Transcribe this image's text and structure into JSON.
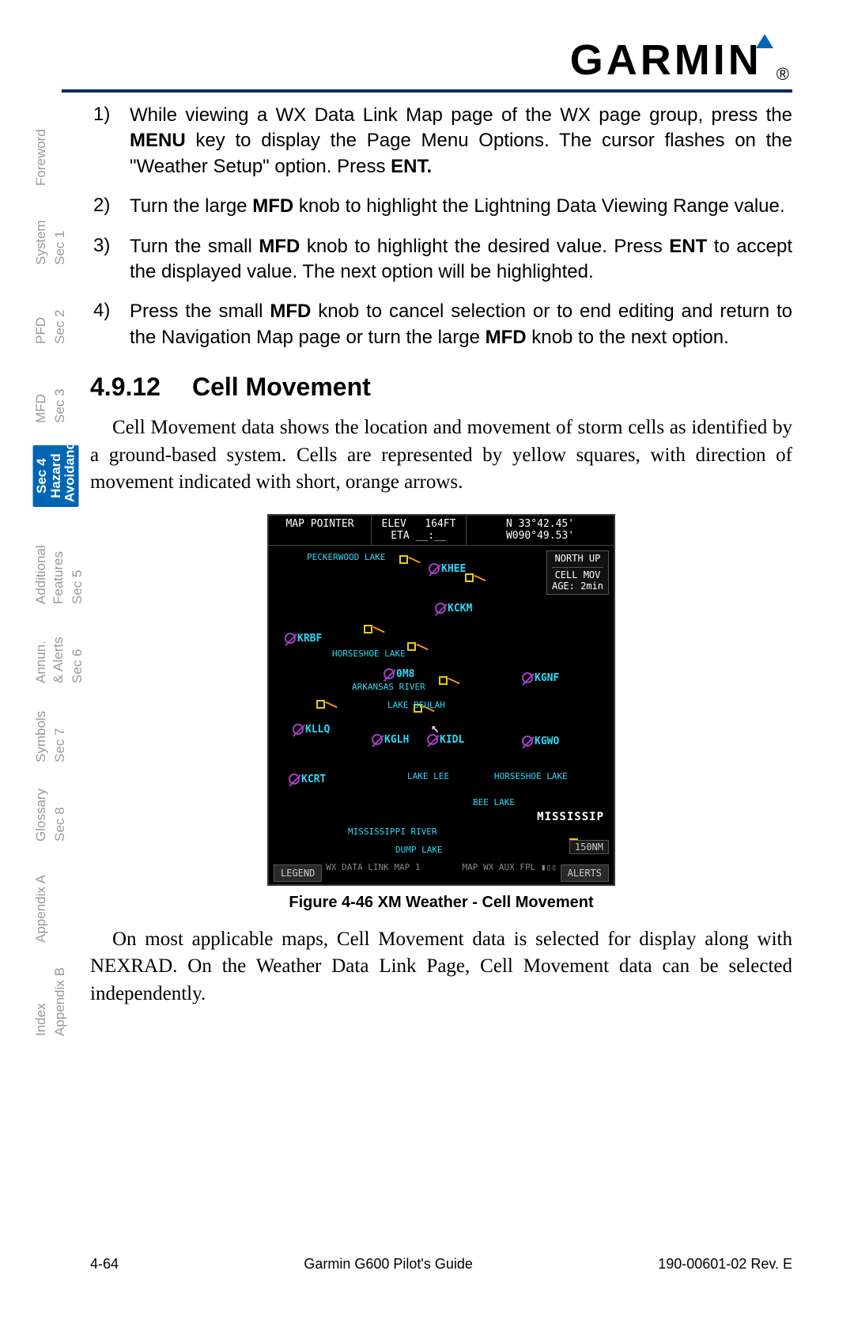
{
  "logo": {
    "text": "GARMIN"
  },
  "sideTabs": [
    {
      "main": "",
      "sub": "Foreword",
      "active": false
    },
    {
      "main": "Sec 1",
      "sub": "System",
      "active": false
    },
    {
      "main": "Sec 2",
      "sub": "PFD",
      "active": false
    },
    {
      "main": "Sec 3",
      "sub": "MFD",
      "active": false
    },
    {
      "main": "Sec 4",
      "sub": "Hazard\nAvoidance",
      "active": true
    },
    {
      "main": "Sec 5",
      "sub": "Additional\nFeatures",
      "active": false
    },
    {
      "main": "Sec 6",
      "sub": "Annun.\n& Alerts",
      "active": false
    },
    {
      "main": "Sec 7",
      "sub": "Symbols",
      "active": false
    },
    {
      "main": "Sec 8",
      "sub": "Glossary",
      "active": false
    },
    {
      "main": "",
      "sub": "Appendix A",
      "active": false
    },
    {
      "main": "Appendix B",
      "sub": "Index",
      "active": false
    }
  ],
  "steps": [
    {
      "num": "1)",
      "pre": "While viewing a WX Data Link Map page of the WX page group, press the ",
      "b1": "MENU",
      "mid1": " key to display the Page Menu Options. The cursor flashes on the \"Weather Setup\" option. Press ",
      "b2": "ENT.",
      "post": ""
    },
    {
      "num": "2)",
      "pre": "Turn the large ",
      "b1": "MFD",
      "mid1": " knob to highlight the Lightning Data Viewing Range value.",
      "b2": "",
      "post": ""
    },
    {
      "num": "3)",
      "pre": "Turn the small ",
      "b1": "MFD",
      "mid1": " knob to highlight the desired value. Press ",
      "b2": "ENT",
      "post": " to accept the displayed value. The next option will be highlighted."
    },
    {
      "num": "4)",
      "pre": "Press the small ",
      "b1": "MFD",
      "mid1": " knob to cancel selection or to end editing and return to the Navigation Map page or turn the large ",
      "b2": "MFD",
      "post": " knob to the next option."
    }
  ],
  "section": {
    "num": "4.9.12",
    "title": "Cell Movement"
  },
  "para1": "Cell Movement data shows the location and movement of storm cells as identified by a ground-based system. Cells are represented by yellow squares, with direction of movement indicated with short, orange arrows.",
  "figureCaption": "Figure 4-46  XM Weather - Cell Movement",
  "para2": "On most applicable maps, Cell Movement data is selected for display along with NEXRAD. On the Weather Data Link Page, Cell Movement data can be selected independently.",
  "footer": {
    "left": "4-64",
    "center": "Garmin G600 Pilot's Guide",
    "right": "190-00601-02  Rev. E"
  },
  "map": {
    "topBar": {
      "pointer": "MAP POINTER",
      "elevLabel": "ELEV",
      "elevVal": "164FT",
      "etaLabel": "ETA",
      "etaVal": "__:__",
      "lat": "N 33°42.45'",
      "lon": "W090°49.53'"
    },
    "infoBox": {
      "line1": "NORTH UP",
      "line2": "CELL MOV",
      "line3": "AGE: 2min"
    },
    "airports": [
      "KHEE",
      "KCKM",
      "KRBF",
      "0M8",
      "KLLQ",
      "KGLH",
      "KIDL",
      "KGNF",
      "KGWO",
      "KCRT"
    ],
    "water": [
      "PECKERWOOD LAKE",
      "HORSESHOE LAKE",
      "ARKANSAS RIVER",
      "LAKE BEULAH",
      "LAKE LEE",
      "HORSESHOE LAKE",
      "BEE LAKE",
      "MISSISSIPPI RIVER",
      "DUMP LAKE"
    ],
    "state": "MISSISSIP",
    "scale": "150NM",
    "bottomStatus": "WX DATA LINK MAP 1",
    "bottomTabs": "MAP  WX  AUX  FPL",
    "btnLegend": "LEGEND",
    "btnAlerts": "ALERTS"
  }
}
